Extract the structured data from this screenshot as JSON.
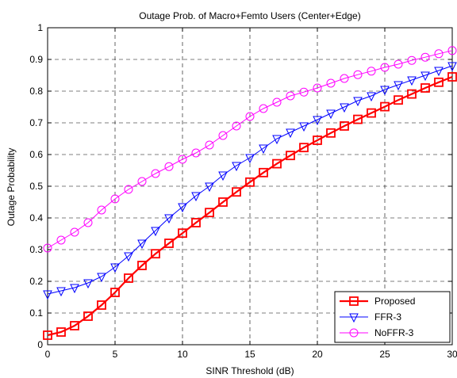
{
  "chart_data": {
    "type": "line",
    "title": "Outage Prob. of Macro+Femto Users (Center+Edge)",
    "xlabel": "SINR Threshold (dB)",
    "ylabel": "Outage Probability",
    "xlim": [
      0,
      30
    ],
    "ylim": [
      0,
      1
    ],
    "xticks": [
      0,
      5,
      10,
      15,
      20,
      25,
      30
    ],
    "yticks": [
      0,
      0.1,
      0.2,
      0.3,
      0.4,
      0.5,
      0.6,
      0.7,
      0.8,
      0.9,
      1
    ],
    "grid": true,
    "legend_position": "bottom-right",
    "x": [
      0,
      1,
      2,
      3,
      4,
      5,
      6,
      7,
      8,
      9,
      10,
      11,
      12,
      13,
      14,
      15,
      16,
      17,
      18,
      19,
      20,
      21,
      22,
      23,
      24,
      25,
      26,
      27,
      28,
      29,
      30
    ],
    "series": [
      {
        "name": "Proposed",
        "color": "#ff0000",
        "marker": "square",
        "line_width": 2.2,
        "values": [
          0.03,
          0.04,
          0.06,
          0.09,
          0.125,
          0.165,
          0.21,
          0.25,
          0.287,
          0.32,
          0.352,
          0.385,
          0.417,
          0.45,
          0.482,
          0.513,
          0.543,
          0.571,
          0.597,
          0.622,
          0.645,
          0.668,
          0.69,
          0.711,
          0.731,
          0.751,
          0.772,
          0.791,
          0.81,
          0.828,
          0.845
        ]
      },
      {
        "name": "FFR-3",
        "color": "#0000ff",
        "marker": "triangle-down",
        "line_width": 1,
        "values": [
          0.16,
          0.17,
          0.18,
          0.195,
          0.215,
          0.245,
          0.28,
          0.32,
          0.36,
          0.4,
          0.435,
          0.47,
          0.5,
          0.535,
          0.565,
          0.59,
          0.62,
          0.65,
          0.67,
          0.69,
          0.71,
          0.73,
          0.75,
          0.77,
          0.785,
          0.805,
          0.82,
          0.835,
          0.85,
          0.865,
          0.88
        ]
      },
      {
        "name": "NoFFR-3",
        "color": "#ff00ff",
        "marker": "circle",
        "line_width": 1,
        "values": [
          0.305,
          0.33,
          0.355,
          0.385,
          0.425,
          0.46,
          0.49,
          0.515,
          0.54,
          0.562,
          0.585,
          0.605,
          0.63,
          0.66,
          0.69,
          0.72,
          0.745,
          0.765,
          0.785,
          0.797,
          0.81,
          0.825,
          0.84,
          0.852,
          0.863,
          0.875,
          0.885,
          0.897,
          0.907,
          0.918,
          0.928
        ]
      }
    ]
  }
}
